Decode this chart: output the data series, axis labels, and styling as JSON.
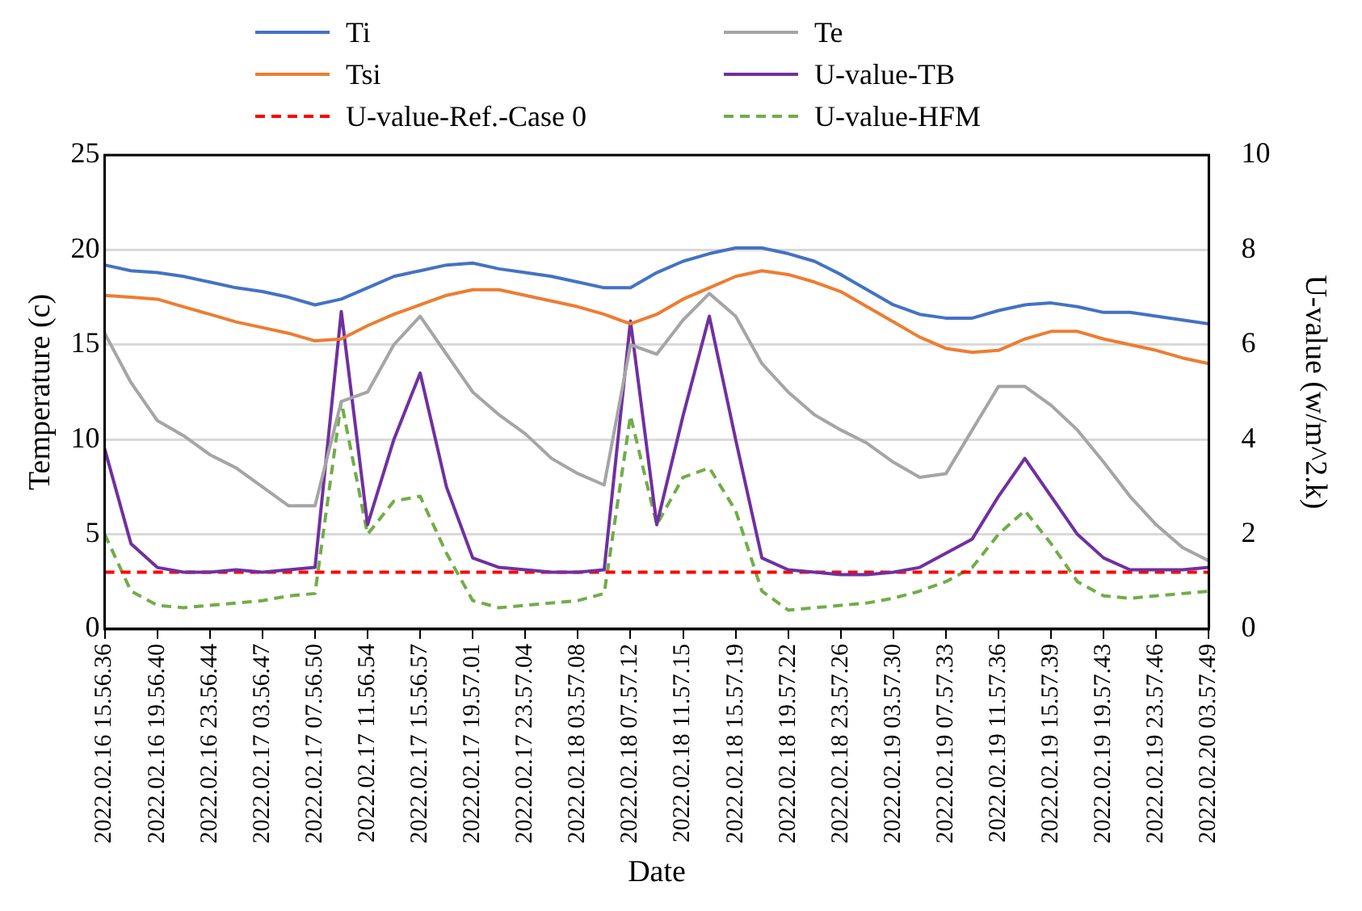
{
  "chart_data": {
    "type": "line",
    "xlabel": "Date",
    "ylabel": "Temperature (c)",
    "y2label": "U-value (w/m^2.k)",
    "categories": [
      "2022.02.16 15.56.36",
      null,
      "2022.02.16 19.56.40",
      null,
      "2022.02.16 23.56.44",
      null,
      "2022.02.17 03.56.47",
      null,
      "2022.02.17 07.56.50",
      null,
      "2022.02.17 11.56.54",
      null,
      "2022.02.17 15.56.57",
      null,
      "2022.02.17 19.57.01",
      null,
      "2022.02.17 23.57.04",
      null,
      "2022.02.18 03.57.08",
      null,
      "2022.02.18 07.57.12",
      null,
      "2022.02.18 11.57.15",
      null,
      "2022.02.18 15.57.19",
      null,
      "2022.02.18 19.57.22",
      null,
      "2022.02.18 23.57.26",
      null,
      "2022.02.19 03.57.30",
      null,
      "2022.02.19 07.57.33",
      null,
      "2022.02.19 11.57.36",
      null,
      "2022.02.19 15.57.39",
      null,
      "2022.02.19 19.57.43",
      null,
      "2022.02.19 23.57.46",
      null,
      "2022.02.20 03.57.49"
    ],
    "series": [
      {
        "name": "Ti",
        "color": "#4472c4",
        "values": [
          19.2,
          18.9,
          18.8,
          18.6,
          18.3,
          18.0,
          17.8,
          17.5,
          17.1,
          17.4,
          18.0,
          18.6,
          18.9,
          19.2,
          19.3,
          19.0,
          18.8,
          18.6,
          18.3,
          18.0,
          18.0,
          18.8,
          19.4,
          19.8,
          20.1,
          20.1,
          19.8,
          19.4,
          18.7,
          17.9,
          17.1,
          16.6,
          16.4,
          16.4,
          16.8,
          17.1,
          17.2,
          17.0,
          16.7,
          16.7,
          16.5,
          16.3,
          16.1
        ]
      },
      {
        "name": "Te",
        "color": "#a5a5a5",
        "values": [
          15.6,
          13.0,
          11.0,
          10.2,
          9.2,
          8.5,
          7.5,
          6.5,
          6.5,
          12.0,
          12.5,
          15.0,
          16.5,
          14.5,
          12.5,
          11.3,
          10.3,
          9.0,
          8.2,
          7.6,
          15.0,
          14.5,
          16.3,
          17.7,
          16.5,
          14.0,
          12.5,
          11.3,
          10.5,
          9.8,
          8.8,
          8.0,
          8.2,
          10.5,
          12.8,
          12.8,
          11.8,
          10.5,
          8.8,
          7.0,
          5.5,
          4.3,
          3.6
        ]
      },
      {
        "name": "Tsi",
        "color": "#ed7d31",
        "values": [
          17.6,
          17.5,
          17.4,
          17.0,
          16.6,
          16.2,
          15.9,
          15.6,
          15.2,
          15.3,
          16.0,
          16.6,
          17.1,
          17.6,
          17.9,
          17.9,
          17.6,
          17.3,
          17.0,
          16.6,
          16.1,
          16.6,
          17.4,
          18.0,
          18.6,
          18.9,
          18.7,
          18.3,
          17.8,
          17.0,
          16.2,
          15.4,
          14.8,
          14.6,
          14.7,
          15.3,
          15.7,
          15.7,
          15.3,
          15.0,
          14.7,
          14.3,
          14.0
        ]
      },
      {
        "name": "U-value-TB",
        "color": "#7030a0",
        "axis": "y2",
        "values": [
          3.8,
          1.8,
          1.3,
          1.2,
          1.2,
          1.25,
          1.2,
          1.25,
          1.3,
          6.7,
          2.2,
          4.0,
          5.4,
          3.0,
          1.5,
          1.3,
          1.25,
          1.2,
          1.2,
          1.25,
          6.5,
          2.2,
          4.5,
          6.6,
          4.0,
          1.5,
          1.25,
          1.2,
          1.15,
          1.15,
          1.2,
          1.3,
          1.6,
          1.9,
          2.8,
          3.6,
          2.8,
          2.0,
          1.5,
          1.25,
          1.25,
          1.25,
          1.3
        ]
      },
      {
        "name": "U-value-Ref.-Case 0",
        "color": "#ff0000",
        "axis": "y2",
        "line_style": "dashed",
        "values": [
          1.2,
          1.2,
          1.2,
          1.2,
          1.2,
          1.2,
          1.2,
          1.2,
          1.2,
          1.2,
          1.2,
          1.2,
          1.2,
          1.2,
          1.2,
          1.2,
          1.2,
          1.2,
          1.2,
          1.2,
          1.2,
          1.2,
          1.2,
          1.2,
          1.2,
          1.2,
          1.2,
          1.2,
          1.2,
          1.2,
          1.2,
          1.2,
          1.2,
          1.2,
          1.2,
          1.2,
          1.2,
          1.2,
          1.2,
          1.2,
          1.2,
          1.2,
          1.2
        ]
      },
      {
        "name": "U-value-HFM",
        "color": "#70ad47",
        "axis": "y2",
        "line_style": "dashed",
        "values": [
          2.0,
          0.8,
          0.5,
          0.45,
          0.5,
          0.55,
          0.6,
          0.7,
          0.75,
          4.8,
          2.0,
          2.7,
          2.8,
          1.6,
          0.6,
          0.45,
          0.5,
          0.55,
          0.6,
          0.75,
          4.5,
          2.2,
          3.2,
          3.4,
          2.5,
          0.8,
          0.4,
          0.45,
          0.5,
          0.55,
          0.65,
          0.8,
          1.0,
          1.3,
          2.0,
          2.5,
          1.8,
          1.0,
          0.7,
          0.65,
          0.7,
          0.75,
          0.8
        ]
      }
    ],
    "ylim": [
      0,
      25
    ],
    "yticks": [
      0,
      5,
      10,
      15,
      20,
      25
    ],
    "y2lim": [
      0,
      10
    ],
    "y2ticks": [
      0,
      2,
      4,
      6,
      8,
      10
    ],
    "grid": "y",
    "legend": "top"
  }
}
